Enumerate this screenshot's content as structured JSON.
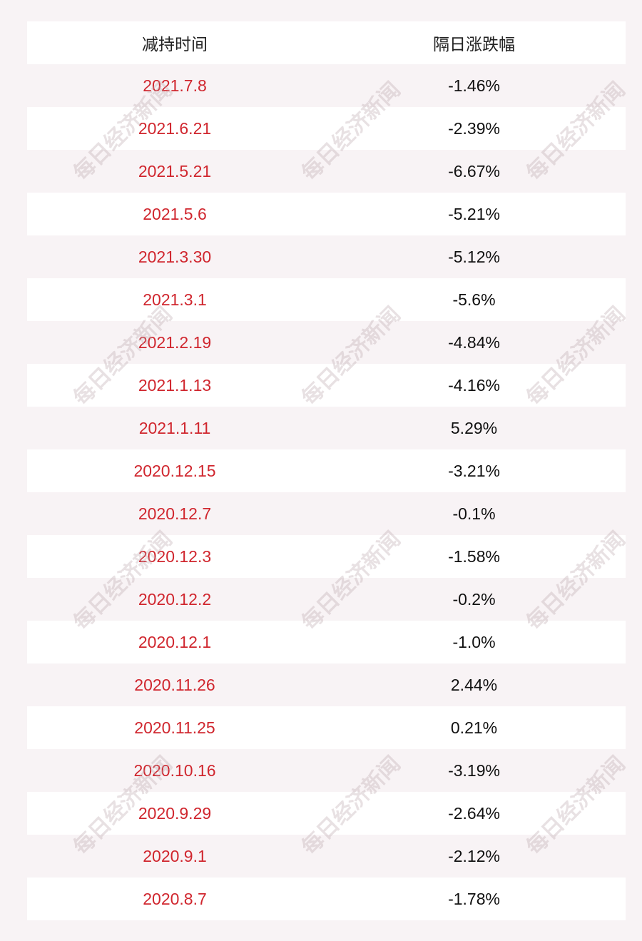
{
  "table": {
    "header": [
      "减持时间",
      "隔日涨跌幅"
    ],
    "rows": [
      [
        "2021.7.8",
        "-1.46%"
      ],
      [
        "2021.6.21",
        "-2.39%"
      ],
      [
        "2021.5.21",
        "-6.67%"
      ],
      [
        "2021.5.6",
        "-5.21%"
      ],
      [
        "2021.3.30",
        "-5.12%"
      ],
      [
        "2021.3.1",
        "-5.6%"
      ],
      [
        "2021.2.19",
        "-4.84%"
      ],
      [
        "2021.1.13",
        "-4.16%"
      ],
      [
        "2021.1.11",
        "5.29%"
      ],
      [
        "2020.12.15",
        "-3.21%"
      ],
      [
        "2020.12.7",
        "-0.1%"
      ],
      [
        "2020.12.3",
        "-1.58%"
      ],
      [
        "2020.12.2",
        "-0.2%"
      ],
      [
        "2020.12.1",
        "-1.0%"
      ],
      [
        "2020.11.26",
        "2.44%"
      ],
      [
        "2020.11.25",
        "0.21%"
      ],
      [
        "2020.10.16",
        "-3.19%"
      ],
      [
        "2020.9.29",
        "-2.64%"
      ],
      [
        "2020.9.1",
        "-2.12%"
      ],
      [
        "2020.8.7",
        "-1.78%"
      ]
    ]
  },
  "watermark": "每日经济新闻"
}
